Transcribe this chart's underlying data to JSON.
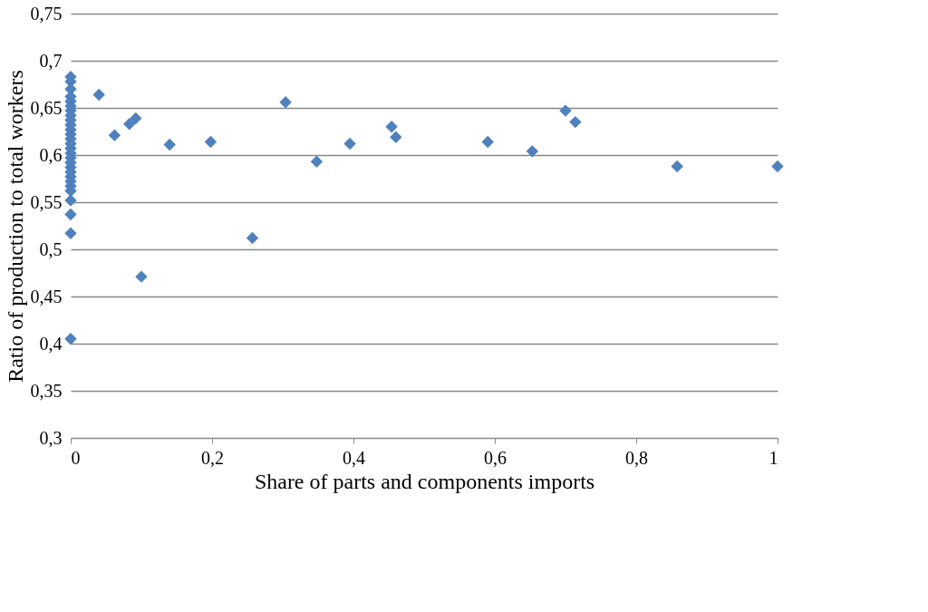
{
  "chart_data": {
    "type": "scatter",
    "xlabel": "Share of parts  and components imports",
    "ylabel": "Ratio of production to total workers",
    "x": [
      0,
      0,
      0,
      0,
      0,
      0,
      0,
      0,
      0,
      0,
      0,
      0,
      0,
      0,
      0,
      0,
      0,
      0,
      0,
      0,
      0,
      0,
      0,
      0,
      0,
      0,
      0,
      0,
      0.04,
      0.062,
      0.083,
      0.092,
      0.1,
      0.14,
      0.198,
      0.257,
      0.304,
      0.348,
      0.395,
      0.454,
      0.46,
      0.59,
      0.653,
      0.7,
      0.714,
      0.858,
      1
    ],
    "series": [
      {
        "color": "#4f81bd",
        "values": [
          0.683,
          0.678,
          0.67,
          0.662,
          0.657,
          0.652,
          0.647,
          0.642,
          0.637,
          0.632,
          0.627,
          0.622,
          0.617,
          0.612,
          0.607,
          0.602,
          0.597,
          0.592,
          0.587,
          0.582,
          0.577,
          0.572,
          0.567,
          0.562,
          0.552,
          0.537,
          0.517,
          0.405,
          0.664,
          0.621,
          0.633,
          0.639,
          0.471,
          0.611,
          0.614,
          0.512,
          0.656,
          0.593,
          0.612,
          0.63,
          0.619,
          0.614,
          0.604,
          0.647,
          0.635,
          0.588,
          0.588
        ]
      }
    ],
    "xlim": [
      0,
      1
    ],
    "xticks": [
      {
        "value": 0,
        "label": "0"
      },
      {
        "value": 0.2,
        "label": "0,2"
      },
      {
        "value": 0.4,
        "label": "0,4"
      },
      {
        "value": 0.6,
        "label": "0,6"
      },
      {
        "value": 0.8,
        "label": "0,8"
      },
      {
        "value": 1,
        "label": "1"
      }
    ],
    "ylim": [
      0.3,
      0.75
    ],
    "yticks": [
      {
        "value": 0.3,
        "label": "0,3"
      },
      {
        "value": 0.35,
        "label": "0,35"
      },
      {
        "value": 0.4,
        "label": "0,4"
      },
      {
        "value": 0.45,
        "label": "0,45"
      },
      {
        "value": 0.5,
        "label": "0,5"
      },
      {
        "value": 0.55,
        "label": "0,55"
      },
      {
        "value": 0.6,
        "label": "0,6"
      },
      {
        "value": 0.65,
        "label": "0,65"
      },
      {
        "value": 0.7,
        "label": "0,7"
      },
      {
        "value": 0.75,
        "label": "0,75"
      }
    ],
    "grid": "y",
    "legend": false,
    "marker": "diamond"
  }
}
